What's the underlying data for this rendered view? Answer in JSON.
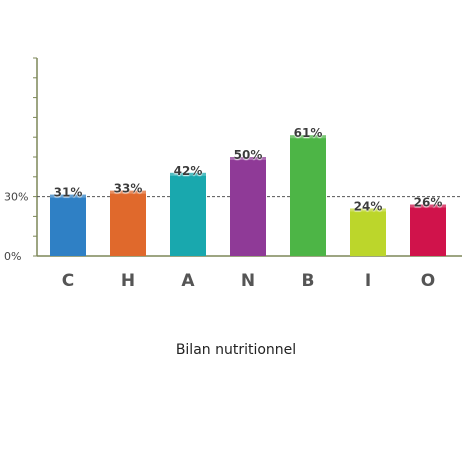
{
  "caption": "Bilan nutritionnel",
  "chart_data": {
    "type": "bar",
    "categories": [
      "C",
      "H",
      "A",
      "N",
      "B",
      "I",
      "O"
    ],
    "values": [
      31,
      33,
      42,
      50,
      61,
      24,
      26
    ],
    "value_labels": [
      "31%",
      "33%",
      "42%",
      "50%",
      "61%",
      "24%",
      "26%"
    ],
    "colors": [
      "#2f80c5",
      "#e0692c",
      "#19a8ae",
      "#8f3a97",
      "#4db546",
      "#bcd62b",
      "#d0134b"
    ],
    "y_ticks": [
      {
        "value": 0,
        "label": "0%"
      },
      {
        "value": 30,
        "label": "30%"
      }
    ],
    "ylim": [
      0,
      100
    ],
    "reference_line": 30,
    "title": "",
    "xlabel": "",
    "ylabel": "",
    "grid": false
  }
}
